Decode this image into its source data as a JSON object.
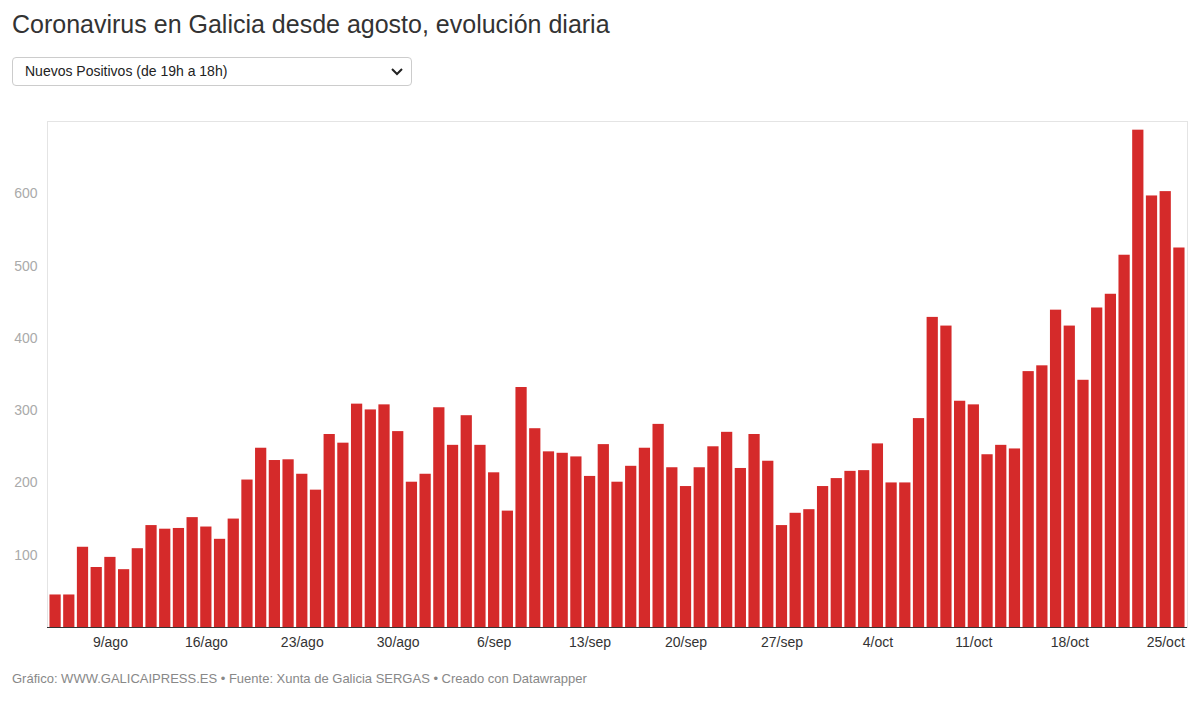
{
  "chart_data": {
    "type": "bar",
    "title": "Coronavirus en Galicia desde agosto, evolución diaria",
    "subtitle": "Nuevos Positivos (de 19h a 18h)",
    "caption": "Gráfico: WWW.GALICAIPRESS.ES • Fuente: Xunta de Galicia SERGAS • Creado con Datawrapper",
    "categories": [
      null,
      null,
      null,
      null,
      "9/ago",
      null,
      null,
      null,
      null,
      null,
      null,
      "16/ago",
      null,
      null,
      null,
      null,
      null,
      null,
      "23/ago",
      null,
      null,
      null,
      null,
      null,
      null,
      "30/ago",
      null,
      null,
      null,
      null,
      null,
      null,
      "6/sep",
      null,
      null,
      null,
      null,
      null,
      null,
      "13/sep",
      null,
      null,
      null,
      null,
      null,
      null,
      "20/sep",
      null,
      null,
      null,
      null,
      null,
      null,
      "27/sep",
      null,
      null,
      null,
      null,
      null,
      null,
      "4/oct",
      null,
      null,
      null,
      null,
      null,
      null,
      "11/oct",
      null,
      null,
      null,
      null,
      null,
      null,
      "18/oct",
      null,
      null,
      null,
      null,
      null,
      null,
      "25/oct",
      null
    ],
    "values": [
      45,
      45,
      111,
      83,
      97,
      80,
      109,
      141,
      136,
      137,
      152,
      139,
      122,
      150,
      204,
      248,
      231,
      232,
      212,
      190,
      267,
      255,
      309,
      301,
      308,
      271,
      201,
      212,
      304,
      252,
      293,
      252,
      214,
      161,
      332,
      275,
      243,
      241,
      236,
      209,
      253,
      201,
      223,
      248,
      281,
      221,
      195,
      221,
      250,
      270,
      220,
      267,
      230,
      141,
      158,
      163,
      195,
      206,
      216,
      217,
      254,
      200,
      200,
      289,
      429,
      417,
      313,
      308,
      239,
      252,
      247,
      354,
      362,
      439,
      417,
      342,
      442,
      461,
      515,
      688,
      597,
      603,
      525
    ],
    "color": "#d52a2a",
    "ylim": [
      0,
      700
    ],
    "yticks": [
      100,
      200,
      300,
      400,
      500,
      600
    ],
    "grid": false
  }
}
